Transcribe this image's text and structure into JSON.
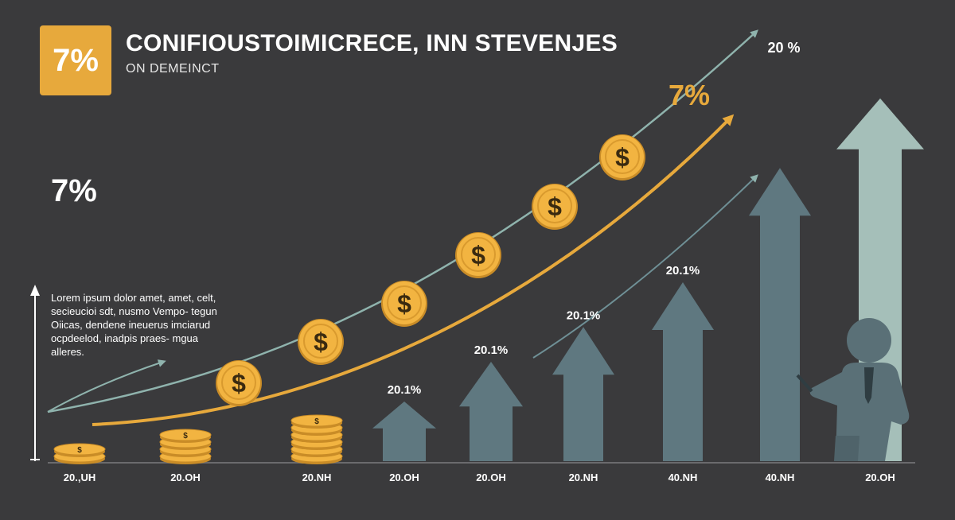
{
  "header": {
    "badge": "7%",
    "title": "CONIFIOUSTOIMICRECE, INN STEVENJES",
    "subtitle": "ON DEMEINCT"
  },
  "side": {
    "big_percent": "7%",
    "text": "Lorem ipsum dolor amet, amet, celt, secieucioi sdt, nusmo Vempo- tegun Oiicas, dendene ineuerus imciarud ocpdeelod, inadpis praes- mgua alleres."
  },
  "annotations": {
    "curve_label": "7%",
    "peak_label": "20 %"
  },
  "colors": {
    "background": "#3a3a3c",
    "gold": "#e7a93c",
    "coin": "#f2b441",
    "arrow_dark": "#5f7880",
    "arrow_light": "#a5bfb9",
    "trend_teal": "#8fb3ad",
    "person": "#5a7077"
  },
  "chart_data": {
    "type": "bar",
    "categories": [
      "20.,UH",
      "20.OH",
      "20.NH",
      "20.OH",
      "20.OH",
      "20.NH",
      "40.NH",
      "40.NH",
      "20.OH"
    ],
    "values": [
      1.5,
      3,
      4.5,
      6,
      10,
      13.5,
      18,
      29.5,
      36.5
    ],
    "data_labels": [
      "",
      "",
      "",
      "20.1%",
      "20.1%",
      "20.1%",
      "20.1%",
      "",
      "20 %"
    ],
    "visual": [
      "coins",
      "coins",
      "coins",
      "arrow",
      "arrow",
      "arrow",
      "arrow",
      "arrow",
      "arrow"
    ],
    "ylim": [
      0,
      40
    ],
    "grid": false,
    "legend": "none"
  }
}
